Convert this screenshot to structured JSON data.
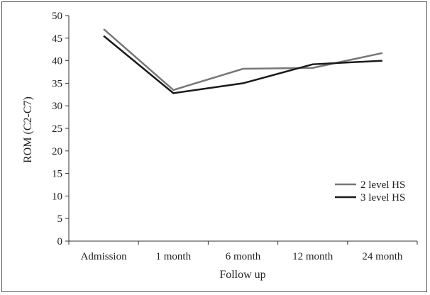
{
  "chart_data": {
    "type": "line",
    "title": "",
    "xlabel": "Follow up",
    "ylabel": "ROM (C2-C7)",
    "categories": [
      "Admission",
      "1 month",
      "6 month",
      "12 month",
      "24 month"
    ],
    "ylim": [
      0,
      50
    ],
    "yticks": [
      "0",
      "5",
      "10",
      "15",
      "20",
      "25",
      "30",
      "35",
      "40",
      "45",
      "50"
    ],
    "grid": false,
    "legend_position": "right",
    "series": [
      {
        "name": "2 level HS",
        "values": [
          47.0,
          33.5,
          38.2,
          38.4,
          41.7
        ],
        "color": "#777777"
      },
      {
        "name": "3 level HS",
        "values": [
          45.5,
          32.8,
          35.0,
          39.2,
          40.0
        ],
        "color": "#1a1a1a"
      }
    ]
  }
}
